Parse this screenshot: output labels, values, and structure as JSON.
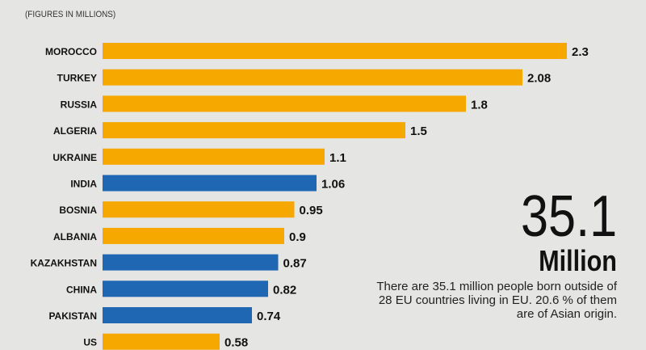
{
  "chart_data": {
    "type": "bar",
    "orientation": "horizontal",
    "subtitle": "(FIGURES IN MILLIONS)",
    "categories": [
      "MOROCCO",
      "TURKEY",
      "RUSSIA",
      "ALGERIA",
      "UKRAINE",
      "INDIA",
      "BOSNIA",
      "ALBANIA",
      "KAZAKHSTAN",
      "CHINA",
      "PAKISTAN",
      "US"
    ],
    "values": [
      2.3,
      2.08,
      1.8,
      1.5,
      1.1,
      1.06,
      0.95,
      0.9,
      0.87,
      0.82,
      0.74,
      0.58
    ],
    "value_labels": [
      "2.3",
      "2.08",
      "1.8",
      "1.5",
      "1.1",
      "1.06",
      "0.95",
      "0.9",
      "0.87",
      "0.82",
      "0.74",
      "0.58"
    ],
    "highlight": [
      false,
      false,
      false,
      false,
      false,
      true,
      false,
      false,
      true,
      true,
      true,
      false
    ],
    "colors": {
      "default": "#f6a800",
      "highlight": "#1f66b3"
    },
    "xlim": [
      0,
      2.5
    ],
    "grid": false
  },
  "callout": {
    "number": "35.1",
    "unit": "Million",
    "text": "There are 35.1 million people born outside of 28 EU countries living in EU.  20.6 % of them are of Asian origin."
  }
}
